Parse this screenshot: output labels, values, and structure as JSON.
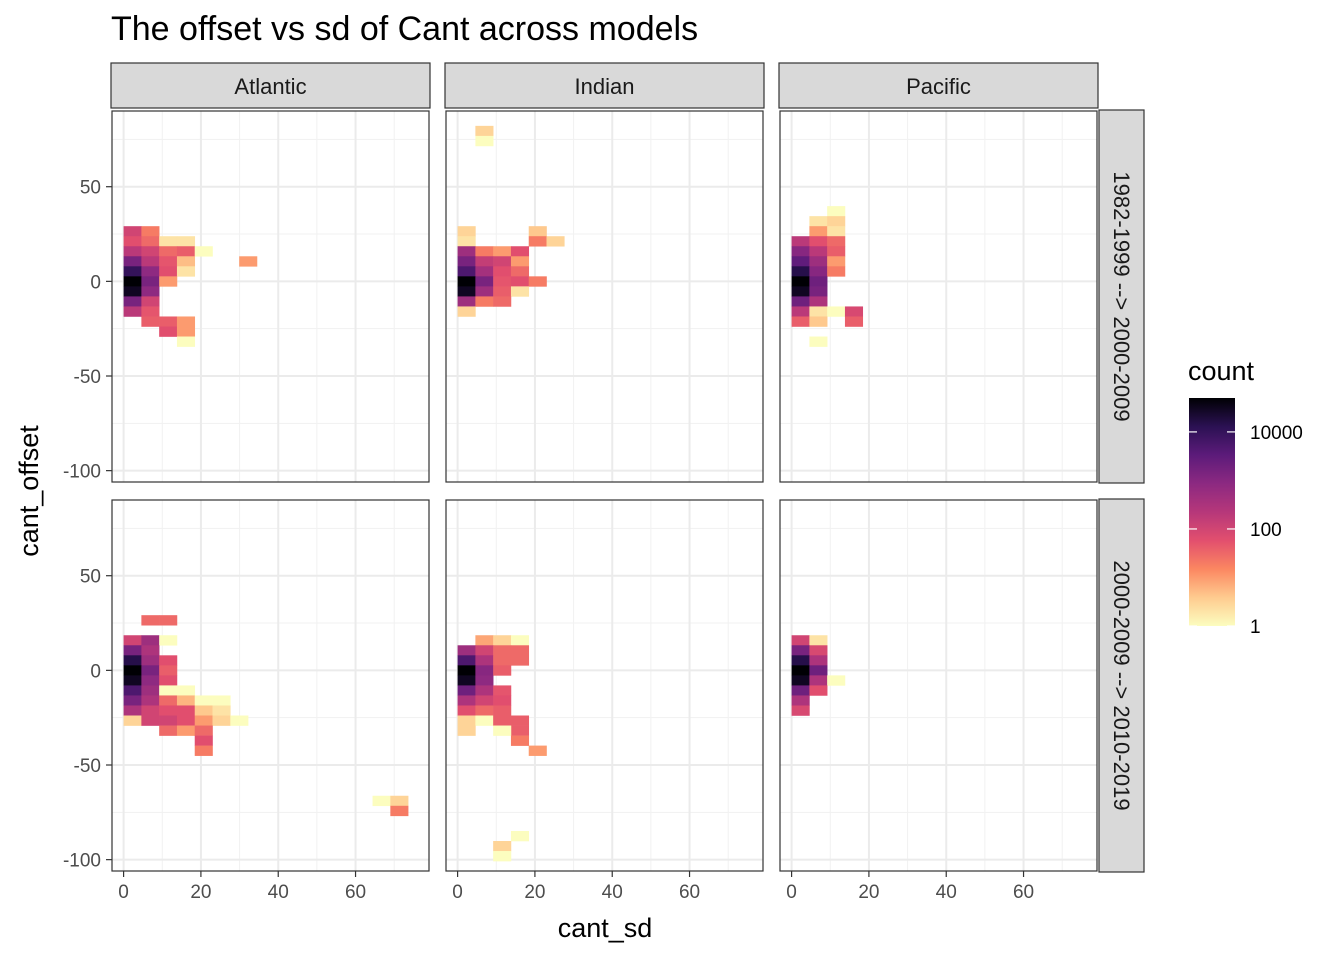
{
  "chart_data": {
    "type": "heatmap",
    "title": "The offset vs sd of Cant across models",
    "xlabel": "cant_sd",
    "ylabel": "cant_offset",
    "xlim": [
      -3,
      79
    ],
    "ylim": [
      -106,
      90
    ],
    "xticks": [
      0,
      20,
      40,
      60
    ],
    "yticks": [
      50,
      0,
      -50,
      -100
    ],
    "bin_width_x": 4.6,
    "bin_height_y": 5.3,
    "columns": [
      "Atlantic",
      "Indian",
      "Pacific"
    ],
    "rows": [
      "1982-1999 --> 2000-2009",
      "2000-2009 --> 2010-2019"
    ],
    "legend": {
      "title": "count",
      "labels": [
        "10000",
        "100",
        "1"
      ],
      "scale": "log10",
      "min": 1,
      "max": 50000
    },
    "colors": [
      "#FCFDBF",
      "#FECB8F",
      "#FB8761",
      "#E24F6E",
      "#B6377A",
      "#8C2981",
      "#5C1B7A",
      "#2B1153",
      "#000004"
    ],
    "panels": [
      {
        "row": 0,
        "col": 0,
        "cells": [
          [
            2.3,
            26.5,
            100
          ],
          [
            6.9,
            26.5,
            20
          ],
          [
            2.3,
            21.2,
            60
          ],
          [
            6.9,
            21.2,
            30
          ],
          [
            11.5,
            21.2,
            2
          ],
          [
            16.1,
            21.2,
            2
          ],
          [
            2.3,
            15.9,
            200
          ],
          [
            6.9,
            15.9,
            100
          ],
          [
            11.5,
            15.9,
            30
          ],
          [
            16.1,
            15.9,
            40
          ],
          [
            20.7,
            15.9,
            1
          ],
          [
            2.3,
            10.6,
            1500
          ],
          [
            6.9,
            10.6,
            200
          ],
          [
            11.5,
            10.6,
            50
          ],
          [
            16.1,
            10.6,
            5
          ],
          [
            32.2,
            10.6,
            10
          ],
          [
            2.3,
            5.3,
            10000
          ],
          [
            6.9,
            5.3,
            800
          ],
          [
            11.5,
            5.3,
            60
          ],
          [
            16.1,
            5.3,
            2
          ],
          [
            2.3,
            0,
            50000
          ],
          [
            6.9,
            0,
            1500
          ],
          [
            11.5,
            0,
            10
          ],
          [
            2.3,
            -5.3,
            30000
          ],
          [
            6.9,
            -5.3,
            800
          ],
          [
            2.3,
            -10.6,
            1500
          ],
          [
            6.9,
            -10.6,
            100
          ],
          [
            2.3,
            -15.9,
            200
          ],
          [
            6.9,
            -15.9,
            50
          ],
          [
            6.9,
            -21.2,
            40
          ],
          [
            11.5,
            -21.2,
            40
          ],
          [
            16.1,
            -21.2,
            10
          ],
          [
            11.5,
            -26.5,
            60
          ],
          [
            16.1,
            -26.5,
            10
          ],
          [
            16.1,
            -31.8,
            1
          ]
        ]
      },
      {
        "row": 0,
        "col": 1,
        "cells": [
          [
            6.9,
            79.5,
            3
          ],
          [
            6.9,
            74.2,
            1
          ],
          [
            2.3,
            26.5,
            3
          ],
          [
            2.3,
            21.2,
            2
          ],
          [
            20.7,
            26.5,
            4
          ],
          [
            20.7,
            21.2,
            20
          ],
          [
            25.3,
            21.2,
            3
          ],
          [
            2.3,
            15.9,
            500
          ],
          [
            6.9,
            15.9,
            20
          ],
          [
            11.5,
            15.9,
            10
          ],
          [
            16.1,
            15.9,
            60
          ],
          [
            2.3,
            10.6,
            1500
          ],
          [
            6.9,
            10.6,
            150
          ],
          [
            11.5,
            10.6,
            100
          ],
          [
            16.1,
            10.6,
            10
          ],
          [
            2.3,
            5.3,
            5000
          ],
          [
            6.9,
            5.3,
            400
          ],
          [
            11.5,
            5.3,
            60
          ],
          [
            16.1,
            5.3,
            30
          ],
          [
            2.3,
            0,
            50000
          ],
          [
            6.9,
            0,
            1500
          ],
          [
            11.5,
            0,
            50
          ],
          [
            16.1,
            0,
            60
          ],
          [
            20.7,
            0,
            20
          ],
          [
            2.3,
            -5.3,
            30000
          ],
          [
            6.9,
            -5.3,
            500
          ],
          [
            11.5,
            -5.3,
            40
          ],
          [
            16.1,
            -5.3,
            2
          ],
          [
            2.3,
            -10.6,
            500
          ],
          [
            6.9,
            -10.6,
            20
          ],
          [
            11.5,
            -10.6,
            30
          ],
          [
            2.3,
            -15.9,
            3
          ]
        ]
      },
      {
        "row": 0,
        "col": 2,
        "cells": [
          [
            11.5,
            37.1,
            1
          ],
          [
            6.9,
            31.8,
            2
          ],
          [
            11.5,
            31.8,
            3
          ],
          [
            6.9,
            26.5,
            10
          ],
          [
            11.5,
            26.5,
            2
          ],
          [
            2.3,
            21.2,
            200
          ],
          [
            6.9,
            21.2,
            60
          ],
          [
            11.5,
            21.2,
            30
          ],
          [
            2.3,
            15.9,
            1000
          ],
          [
            6.9,
            15.9,
            200
          ],
          [
            11.5,
            15.9,
            40
          ],
          [
            2.3,
            10.6,
            3000
          ],
          [
            6.9,
            10.6,
            500
          ],
          [
            11.5,
            10.6,
            10
          ],
          [
            2.3,
            5.3,
            15000
          ],
          [
            6.9,
            5.3,
            1000
          ],
          [
            11.5,
            5.3,
            20
          ],
          [
            2.3,
            0,
            50000
          ],
          [
            6.9,
            0,
            2000
          ],
          [
            2.3,
            -5.3,
            30000
          ],
          [
            6.9,
            -5.3,
            1500
          ],
          [
            2.3,
            -10.6,
            2000
          ],
          [
            6.9,
            -10.6,
            300
          ],
          [
            2.3,
            -15.9,
            200
          ],
          [
            6.9,
            -15.9,
            2
          ],
          [
            11.5,
            -15.9,
            1
          ],
          [
            16.1,
            -15.9,
            80
          ],
          [
            2.3,
            -21.2,
            40
          ],
          [
            6.9,
            -21.2,
            4
          ],
          [
            16.1,
            -21.2,
            40
          ],
          [
            6.9,
            -31.8,
            1
          ]
        ]
      },
      {
        "row": 1,
        "col": 0,
        "cells": [
          [
            6.9,
            26.5,
            30
          ],
          [
            11.5,
            26.5,
            30
          ],
          [
            2.3,
            15.9,
            100
          ],
          [
            6.9,
            15.9,
            500
          ],
          [
            11.5,
            15.9,
            1
          ],
          [
            2.3,
            10.6,
            1500
          ],
          [
            6.9,
            10.6,
            300
          ],
          [
            2.3,
            5.3,
            15000
          ],
          [
            6.9,
            5.3,
            500
          ],
          [
            11.5,
            5.3,
            60
          ],
          [
            2.3,
            0,
            50000
          ],
          [
            6.9,
            0,
            1500
          ],
          [
            11.5,
            0,
            40
          ],
          [
            2.3,
            -5.3,
            30000
          ],
          [
            6.9,
            -5.3,
            800
          ],
          [
            11.5,
            -5.3,
            60
          ],
          [
            2.3,
            -10.6,
            5000
          ],
          [
            6.9,
            -10.6,
            500
          ],
          [
            11.5,
            -10.6,
            1
          ],
          [
            16.1,
            -10.6,
            1
          ],
          [
            2.3,
            -15.9,
            1500
          ],
          [
            6.9,
            -15.9,
            300
          ],
          [
            11.5,
            -15.9,
            30
          ],
          [
            16.1,
            -15.9,
            6
          ],
          [
            20.7,
            -15.9,
            1
          ],
          [
            25.3,
            -15.9,
            1
          ],
          [
            2.3,
            -21.2,
            300
          ],
          [
            6.9,
            -21.2,
            100
          ],
          [
            11.5,
            -21.2,
            60
          ],
          [
            16.1,
            -21.2,
            60
          ],
          [
            20.7,
            -21.2,
            4
          ],
          [
            25.3,
            -21.2,
            2
          ],
          [
            2.3,
            -26.5,
            3
          ],
          [
            6.9,
            -26.5,
            100
          ],
          [
            11.5,
            -26.5,
            100
          ],
          [
            16.1,
            -26.5,
            60
          ],
          [
            20.7,
            -26.5,
            10
          ],
          [
            25.3,
            -26.5,
            3
          ],
          [
            29.9,
            -26.5,
            1
          ],
          [
            11.5,
            -31.8,
            30
          ],
          [
            16.1,
            -31.8,
            10
          ],
          [
            20.7,
            -31.8,
            30
          ],
          [
            20.7,
            -37.1,
            60
          ],
          [
            20.7,
            -42.4,
            20
          ],
          [
            66.7,
            -68.9,
            1
          ],
          [
            71.3,
            -68.9,
            3
          ],
          [
            71.3,
            -74.2,
            20
          ]
        ]
      },
      {
        "row": 1,
        "col": 1,
        "cells": [
          [
            6.9,
            15.9,
            8
          ],
          [
            11.5,
            15.9,
            3
          ],
          [
            16.1,
            15.9,
            1
          ],
          [
            2.3,
            10.6,
            500
          ],
          [
            6.9,
            10.6,
            100
          ],
          [
            11.5,
            10.6,
            30
          ],
          [
            16.1,
            10.6,
            30
          ],
          [
            2.3,
            5.3,
            5000
          ],
          [
            6.9,
            5.3,
            300
          ],
          [
            11.5,
            5.3,
            30
          ],
          [
            16.1,
            5.3,
            30
          ],
          [
            2.3,
            0,
            50000
          ],
          [
            6.9,
            0,
            1000
          ],
          [
            11.5,
            0,
            40
          ],
          [
            2.3,
            -5.3,
            30000
          ],
          [
            6.9,
            -5.3,
            800
          ],
          [
            2.3,
            -10.6,
            2000
          ],
          [
            6.9,
            -10.6,
            300
          ],
          [
            11.5,
            -10.6,
            50
          ],
          [
            2.3,
            -15.9,
            300
          ],
          [
            6.9,
            -15.9,
            100
          ],
          [
            11.5,
            -15.9,
            60
          ],
          [
            2.3,
            -21.2,
            60
          ],
          [
            6.9,
            -21.2,
            30
          ],
          [
            11.5,
            -21.2,
            40
          ],
          [
            2.3,
            -26.5,
            3
          ],
          [
            6.9,
            -26.5,
            1
          ],
          [
            11.5,
            -26.5,
            40
          ],
          [
            16.1,
            -26.5,
            40
          ],
          [
            2.3,
            -31.8,
            3
          ],
          [
            16.1,
            -31.8,
            40
          ],
          [
            11.5,
            -31.8,
            1
          ],
          [
            16.1,
            -37.1,
            20
          ],
          [
            20.7,
            -42.4,
            10
          ],
          [
            16.1,
            -87.5,
            1
          ],
          [
            11.5,
            -92.8,
            3
          ],
          [
            11.5,
            -98.1,
            1
          ]
        ]
      },
      {
        "row": 1,
        "col": 2,
        "cells": [
          [
            2.3,
            15.9,
            100
          ],
          [
            6.9,
            15.9,
            2
          ],
          [
            2.3,
            10.6,
            1500
          ],
          [
            6.9,
            10.6,
            80
          ],
          [
            2.3,
            5.3,
            15000
          ],
          [
            6.9,
            5.3,
            300
          ],
          [
            2.3,
            0,
            50000
          ],
          [
            6.9,
            0,
            2000
          ],
          [
            2.3,
            -5.3,
            30000
          ],
          [
            6.9,
            -5.3,
            300
          ],
          [
            11.5,
            -5.3,
            1
          ],
          [
            2.3,
            -10.6,
            2000
          ],
          [
            6.9,
            -10.6,
            60
          ],
          [
            2.3,
            -15.9,
            300
          ],
          [
            2.3,
            -21.2,
            80
          ]
        ]
      }
    ]
  }
}
